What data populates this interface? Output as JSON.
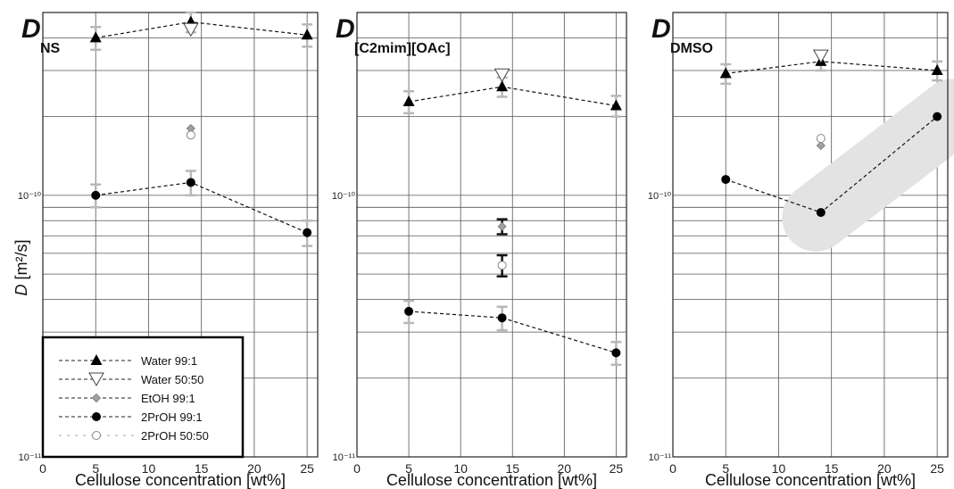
{
  "ylabel": "D [m²/s]",
  "ylabel_italic": "D",
  "ylabel_units": "[m²/s]",
  "legend": {
    "position": "bottom-left of first panel",
    "entries": [
      {
        "label": "Water 99:1",
        "marker": "filled-triangle-up",
        "color": "#000000"
      },
      {
        "label": "Water 50:50",
        "marker": "open-triangle-down",
        "color": "#555555"
      },
      {
        "label": "EtOH 99:1",
        "marker": "gray-diamond",
        "color": "#999999"
      },
      {
        "label": "2PrOH 99:1",
        "marker": "filled-circle",
        "color": "#000000"
      },
      {
        "label": "2PrOH 50:50",
        "marker": "open-circle-dot",
        "color": "#999999"
      }
    ]
  },
  "chart_data": [
    {
      "type": "scatter",
      "title": "D",
      "title_sub": "NS",
      "xlabel": "Cellulose concentration [wt%]",
      "ylabel": "D [m²/s]",
      "xlim": [
        0,
        26
      ],
      "ylim": [
        1e-11,
        5e-10
      ],
      "yscale": "log",
      "grid": true,
      "x_ticks": [
        "0",
        "5",
        "10",
        "15",
        "20",
        "25"
      ],
      "y_tick_labels": [
        {
          "value": 1e-10,
          "label": "10⁻¹⁰"
        },
        {
          "value": 1e-11,
          "label": "10⁻¹¹"
        }
      ],
      "series": [
        {
          "name": "Water 99:1",
          "x": [
            5,
            14,
            25
          ],
          "y": [
            4e-10,
            4.6e-10,
            4.1e-10
          ],
          "err": [
            4e-11,
            4e-11,
            4e-11
          ],
          "connected": true
        },
        {
          "name": "Water 50:50",
          "x": [
            14
          ],
          "y": [
            4.3e-10
          ],
          "connected": false
        },
        {
          "name": "EtOH 99:1",
          "x": [
            14
          ],
          "y": [
            1.8e-10
          ],
          "connected": false
        },
        {
          "name": "2PrOH 99:1",
          "x": [
            5,
            14,
            25
          ],
          "y": [
            1e-10,
            1.12e-10,
            7.2e-11
          ],
          "err": [
            1e-11,
            1.2e-11,
            8e-12
          ],
          "connected": true
        },
        {
          "name": "2PrOH 50:50",
          "x": [
            14
          ],
          "y": [
            1.7e-10
          ],
          "connected": false
        }
      ]
    },
    {
      "type": "scatter",
      "title": "D",
      "title_sub": "[C2mim][OAc]",
      "xlabel": "Cellulose concentration [wt%]",
      "ylabel": "",
      "xlim": [
        0,
        26
      ],
      "ylim": [
        1e-11,
        5e-10
      ],
      "yscale": "log",
      "grid": true,
      "x_ticks": [
        "0",
        "5",
        "10",
        "15",
        "20",
        "25"
      ],
      "y_tick_labels": [
        {
          "value": 1e-10,
          "label": "10⁻¹⁰"
        },
        {
          "value": 1e-11,
          "label": "10⁻¹¹"
        }
      ],
      "series": [
        {
          "name": "Water 99:1",
          "x": [
            5,
            14,
            25
          ],
          "y": [
            2.28e-10,
            2.6e-10,
            2.2e-10
          ],
          "err": [
            2.2e-11,
            2.2e-11,
            2e-11
          ],
          "connected": true
        },
        {
          "name": "Water 50:50",
          "x": [
            14
          ],
          "y": [
            2.88e-10
          ],
          "connected": false
        },
        {
          "name": "EtOH 99:1",
          "x": [
            14
          ],
          "y": [
            7.6e-11
          ],
          "err": [
            5e-12
          ],
          "connected": false
        },
        {
          "name": "2PrOH 99:1",
          "x": [
            5,
            14,
            25
          ],
          "y": [
            3.6e-11,
            3.4e-11,
            2.5e-11
          ],
          "err": [
            3.5e-12,
            3.5e-12,
            2.5e-12
          ],
          "connected": true
        },
        {
          "name": "2PrOH 50:50",
          "x": [
            14
          ],
          "y": [
            5.4e-11
          ],
          "err": [
            5e-12
          ],
          "connected": false
        }
      ]
    },
    {
      "type": "scatter",
      "title": "D",
      "title_sub": "DMSO",
      "xlabel": "Cellulose concentration [wt%]",
      "ylabel": "",
      "xlim": [
        0,
        26
      ],
      "ylim": [
        1e-11,
        5e-10
      ],
      "yscale": "log",
      "grid": true,
      "x_ticks": [
        "0",
        "5",
        "10",
        "15",
        "20",
        "25"
      ],
      "y_tick_labels": [
        {
          "value": 1e-10,
          "label": "10⁻¹⁰"
        },
        {
          "value": 1e-11,
          "label": "10⁻¹¹"
        }
      ],
      "highlight": {
        "shape": "rounded band",
        "color": "#e3e3e3",
        "from": {
          "x": 14,
          "y": 8.5e-11
        },
        "to": {
          "x": 26,
          "y": 2e-10
        }
      },
      "series": [
        {
          "name": "Water 99:1",
          "x": [
            5,
            14,
            25
          ],
          "y": [
            2.92e-10,
            3.25e-10,
            3e-10
          ],
          "err": [
            2.5e-11,
            2.5e-11,
            2.5e-11
          ],
          "connected": true
        },
        {
          "name": "Water 50:50",
          "x": [
            14
          ],
          "y": [
            3.4e-10
          ],
          "connected": false
        },
        {
          "name": "EtOH 99:1",
          "x": [
            14
          ],
          "y": [
            1.55e-10
          ],
          "connected": false
        },
        {
          "name": "2PrOH 99:1",
          "x": [
            5,
            14,
            25
          ],
          "y": [
            1.15e-10,
            8.6e-11,
            2e-10
          ],
          "connected": true
        },
        {
          "name": "2PrOH 50:50",
          "x": [
            14
          ],
          "y": [
            1.65e-10
          ],
          "connected": false
        }
      ]
    }
  ]
}
